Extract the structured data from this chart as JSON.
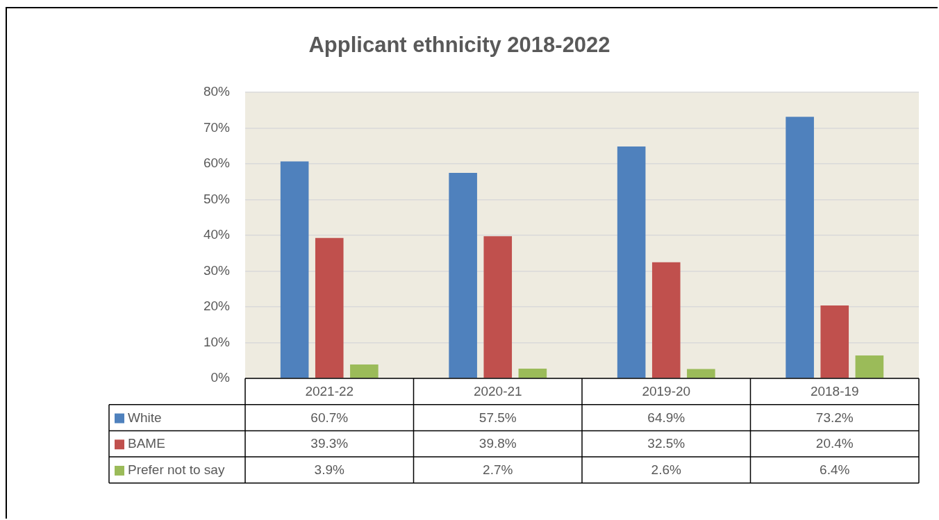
{
  "chart_data": {
    "type": "bar",
    "title": "Applicant ethnicity 2018-2022",
    "categories": [
      "2021-22",
      "2020-21",
      "2019-20",
      "2018-19"
    ],
    "series": [
      {
        "name": "White",
        "color": "#4f81bd",
        "values": [
          60.7,
          57.5,
          64.9,
          73.2
        ],
        "value_labels": [
          "60.7%",
          "57.5%",
          "64.9%",
          "73.2%"
        ]
      },
      {
        "name": "BAME",
        "color": "#c0504d",
        "values": [
          39.3,
          39.8,
          32.5,
          20.4
        ],
        "value_labels": [
          "39.3%",
          "39.8%",
          "32.5%",
          "20.4%"
        ]
      },
      {
        "name": "Prefer not to say",
        "color": "#9bbb59",
        "values": [
          3.9,
          2.7,
          2.6,
          6.4
        ],
        "value_labels": [
          "3.9%",
          "2.7%",
          "2.6%",
          "6.4%"
        ]
      }
    ],
    "ylim": [
      0,
      80
    ],
    "yticks": [
      {
        "value": 0,
        "label": "0%"
      },
      {
        "value": 10,
        "label": "10%"
      },
      {
        "value": 20,
        "label": "20%"
      },
      {
        "value": 30,
        "label": "30%"
      },
      {
        "value": 40,
        "label": "40%"
      },
      {
        "value": 50,
        "label": "50%"
      },
      {
        "value": 60,
        "label": "60%"
      },
      {
        "value": 70,
        "label": "70%"
      },
      {
        "value": 80,
        "label": "80%"
      }
    ],
    "grid": "y",
    "legend": "bottom"
  }
}
